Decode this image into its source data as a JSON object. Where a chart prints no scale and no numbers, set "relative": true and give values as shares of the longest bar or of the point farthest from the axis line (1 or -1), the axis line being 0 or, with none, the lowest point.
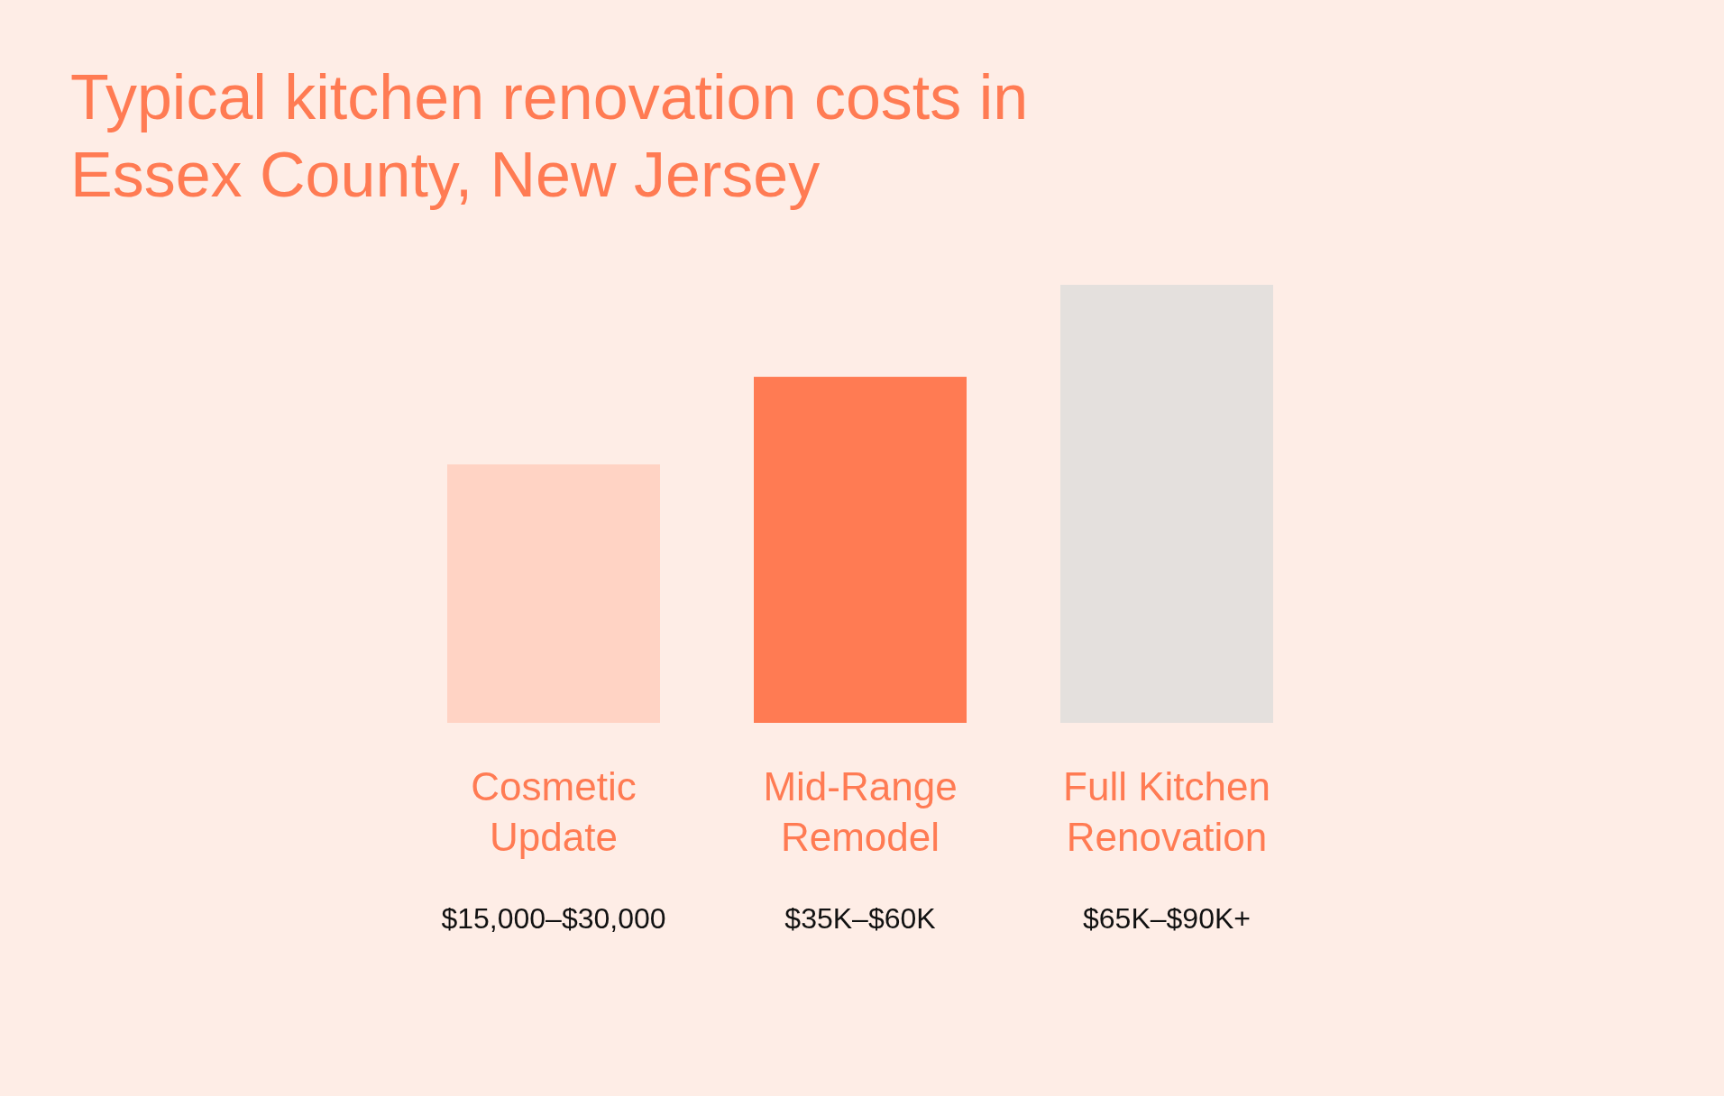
{
  "chart_data": {
    "type": "bar",
    "title": "Typical kitchen renovation costs in Essex County, New Jersey",
    "categories": [
      "Cosmetic Update",
      "Mid-Range Remodel",
      "Full Kitchen Renovation"
    ],
    "values": [
      0.59,
      0.79,
      1
    ],
    "colors": [
      "#ffd3c4",
      "#ff7b53",
      "#e4e0dd"
    ],
    "relative": true,
    "annotations": [
      "$15,000–$30,000",
      "$35K–$60K",
      "$65K–$90K+"
    ]
  }
}
